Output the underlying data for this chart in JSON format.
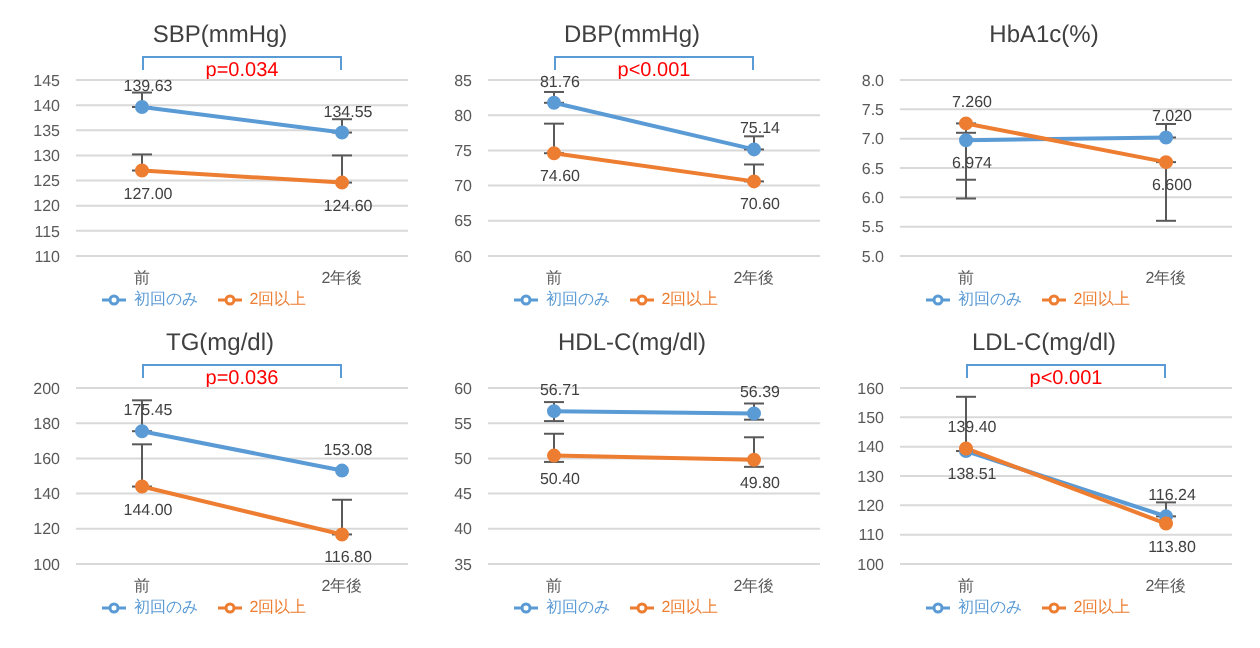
{
  "chart_data": [
    {
      "type": "line",
      "title": "SBP(mmHg)",
      "categories": [
        "前",
        "2年後"
      ],
      "ylim": [
        110,
        145
      ],
      "yticks": [
        110,
        115,
        120,
        125,
        130,
        135,
        140,
        145
      ],
      "grid": "y",
      "legend": "bottom",
      "marker": "circle",
      "annotations": [
        "p=0.034"
      ],
      "series": [
        {
          "name": "初回のみ",
          "color": "#5b9bd5",
          "values": [
            139.63,
            134.55
          ],
          "value_labels": [
            "139.63",
            "134.55"
          ],
          "errors": [
            [
              139.63,
              142.5
            ],
            [
              134.55,
              137.2
            ]
          ]
        },
        {
          "name": "2回以上",
          "color": "#ed7d31",
          "values": [
            127.0,
            124.6
          ],
          "value_labels": [
            "127.00",
            "124.60"
          ],
          "errors": [
            [
              127.0,
              130.2
            ],
            [
              124.6,
              130.0
            ]
          ]
        }
      ]
    },
    {
      "type": "line",
      "title": "DBP(mmHg)",
      "categories": [
        "前",
        "2年後"
      ],
      "ylim": [
        60,
        85
      ],
      "yticks": [
        60,
        65,
        70,
        75,
        80,
        85
      ],
      "grid": "y",
      "legend": "bottom",
      "marker": "circle",
      "annotations": [
        "p<0.001"
      ],
      "series": [
        {
          "name": "初回のみ",
          "color": "#5b9bd5",
          "values": [
            81.76,
            75.14
          ],
          "value_labels": [
            "81.76",
            "75.14"
          ],
          "errors": [
            [
              81.76,
              83.3
            ],
            [
              75.14,
              77.0
            ]
          ]
        },
        {
          "name": "2回以上",
          "color": "#ed7d31",
          "values": [
            74.6,
            70.6
          ],
          "value_labels": [
            "74.60",
            "70.60"
          ],
          "errors": [
            [
              74.6,
              78.8
            ],
            [
              70.6,
              73.0
            ]
          ]
        }
      ]
    },
    {
      "type": "line",
      "title": "HbA1c(%)",
      "categories": [
        "前",
        "2年後"
      ],
      "ylim": [
        5,
        8
      ],
      "yticks": [
        {
          "value": 5,
          "label": "5.0"
        },
        5.5,
        {
          "value": 6,
          "label": "6.0"
        },
        6.5,
        {
          "value": 7,
          "label": "7.0"
        },
        7.5,
        {
          "value": 8,
          "label": "8.0"
        }
      ],
      "grid": "y",
      "legend": "bottom",
      "marker": "circle",
      "series": [
        {
          "name": "初回のみ",
          "color": "#5b9bd5",
          "values": [
            6.974,
            7.02
          ],
          "value_labels": [
            "6.974",
            "7.020"
          ],
          "errors": [
            [
              6.3,
              7.1
            ],
            [
              7.02,
              7.25
            ]
          ]
        },
        {
          "name": "2回以上",
          "color": "#ed7d31",
          "values": [
            7.26,
            6.6
          ],
          "value_labels": [
            "7.260",
            "6.600"
          ],
          "errors": [
            [
              5.98,
              7.26
            ],
            [
              5.6,
              6.6
            ]
          ]
        }
      ]
    },
    {
      "type": "line",
      "title": "TG(mg/dl)",
      "categories": [
        "前",
        "2年後"
      ],
      "ylim": [
        100,
        200
      ],
      "yticks": [
        100,
        120,
        140,
        160,
        180,
        200
      ],
      "grid": "y",
      "legend": "bottom",
      "marker": "circle",
      "annotations": [
        "p=0.036"
      ],
      "series": [
        {
          "name": "初回のみ",
          "color": "#5b9bd5",
          "values": [
            175.45,
            153.08
          ],
          "value_labels": [
            "175.45",
            "153.08"
          ],
          "errors": [
            [
              175.45,
              193
            ],
            null
          ]
        },
        {
          "name": "2回以上",
          "color": "#ed7d31",
          "values": [
            144.0,
            116.8
          ],
          "value_labels": [
            "144.00",
            "116.80"
          ],
          "errors": [
            [
              144.0,
              168
            ],
            [
              116.8,
              136.5
            ]
          ]
        }
      ]
    },
    {
      "type": "line",
      "title": "HDL-C(mg/dl)",
      "categories": [
        "前",
        "2年後"
      ],
      "ylim": [
        35,
        60
      ],
      "yticks": [
        35,
        40,
        45,
        50,
        55,
        60
      ],
      "grid": "y",
      "legend": "bottom",
      "marker": "circle",
      "series": [
        {
          "name": "初回のみ",
          "color": "#5b9bd5",
          "values": [
            56.71,
            56.39
          ],
          "value_labels": [
            "56.71",
            "56.39"
          ],
          "errors": [
            [
              55.3,
              58
            ],
            [
              55.5,
              57.8
            ]
          ]
        },
        {
          "name": "2回以上",
          "color": "#ed7d31",
          "values": [
            50.4,
            49.8
          ],
          "value_labels": [
            "50.40",
            "49.80"
          ],
          "errors": [
            [
              49.5,
              53.5
            ],
            [
              48.8,
              53
            ]
          ]
        }
      ]
    },
    {
      "type": "line",
      "title": "LDL-C(mg/dl)",
      "categories": [
        "前",
        "2年後"
      ],
      "ylim": [
        100,
        160
      ],
      "yticks": [
        100,
        110,
        120,
        130,
        140,
        150,
        160
      ],
      "grid": "y",
      "legend": "bottom",
      "marker": "circle",
      "annotations": [
        "p<0.001"
      ],
      "series": [
        {
          "name": "初回のみ",
          "color": "#5b9bd5",
          "values": [
            138.51,
            116.24
          ],
          "value_labels": [
            "138.51",
            "116.24"
          ],
          "errors": [
            [
              138.51,
              157
            ],
            [
              116.24,
              121
            ]
          ]
        },
        {
          "name": "2回以上",
          "color": "#ed7d31",
          "values": [
            139.4,
            113.8
          ],
          "value_labels": [
            "139.40",
            "113.80"
          ],
          "errors": [
            null,
            null
          ]
        }
      ]
    }
  ]
}
